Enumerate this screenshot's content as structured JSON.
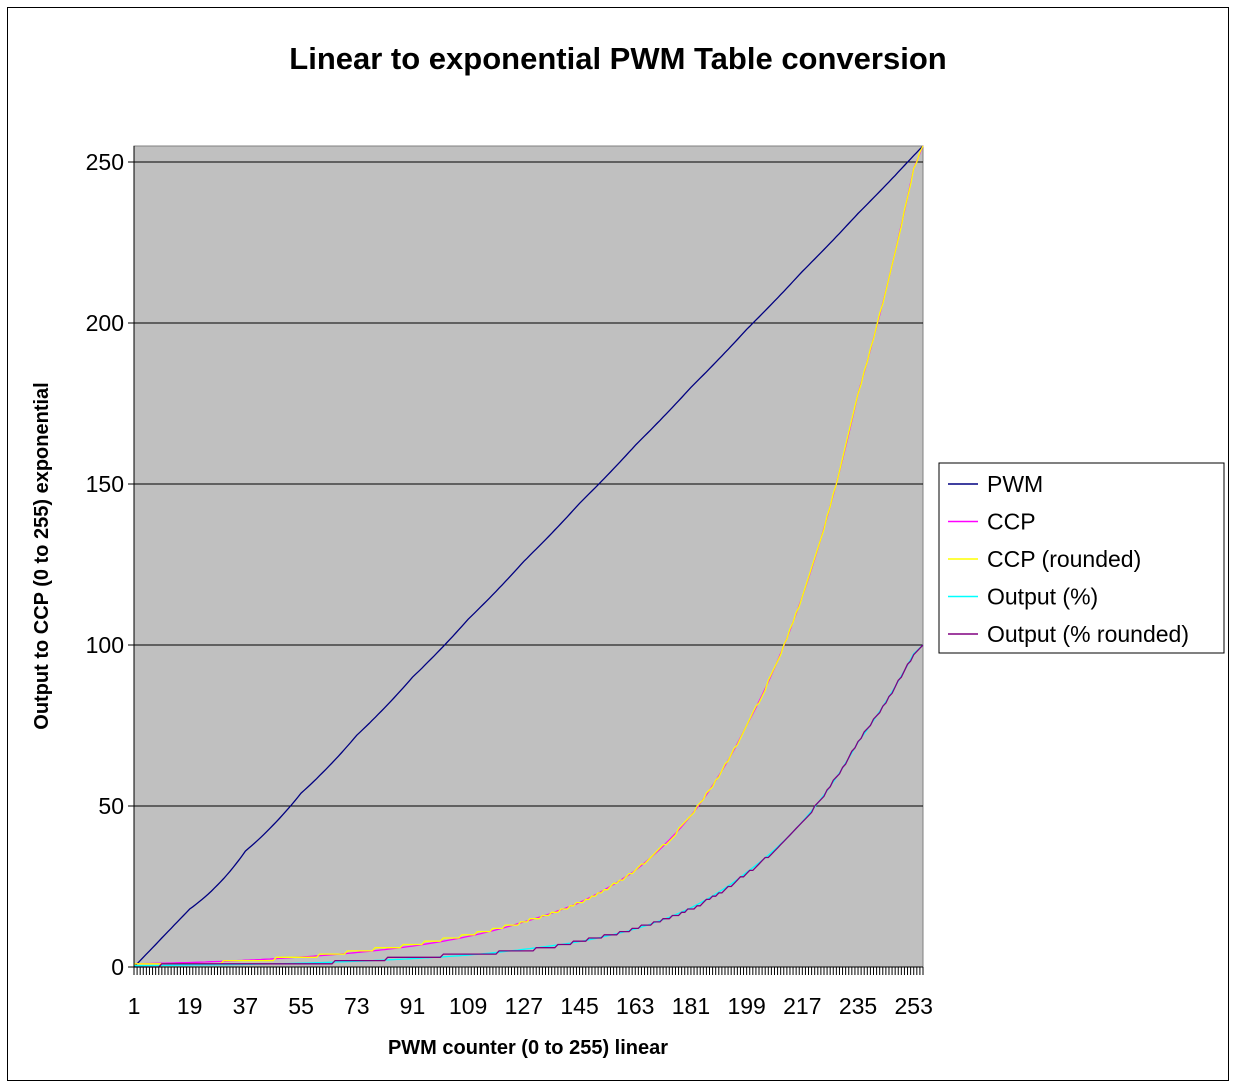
{
  "chart_data": {
    "type": "line",
    "title": "Linear to exponential PWM Table conversion",
    "xlabel": "PWM counter (0 to 255) linear",
    "ylabel": "Output to CCP (0 to 255) exponential",
    "ylim": [
      0,
      255
    ],
    "yticks": [
      0,
      50,
      100,
      150,
      200,
      250
    ],
    "x_domain": [
      1,
      256
    ],
    "xticks": [
      1,
      19,
      37,
      55,
      73,
      91,
      109,
      127,
      145,
      163,
      181,
      199,
      217,
      235,
      253
    ],
    "grid": "horizontal",
    "legend_position": "right",
    "plot_background": "#c0c0c0",
    "x": [
      1,
      19,
      37,
      55,
      73,
      91,
      109,
      127,
      145,
      163,
      181,
      199,
      217,
      235,
      253,
      256
    ],
    "series": [
      {
        "name": "PWM",
        "color": "#000080",
        "values": [
          0,
          18,
          36,
          54,
          72,
          90,
          108,
          126,
          144,
          162,
          180,
          198,
          216,
          234,
          252,
          255
        ]
      },
      {
        "name": "CCP",
        "color": "#ff00ff",
        "values": [
          1,
          1.4,
          2.1,
          3.1,
          4.5,
          6.5,
          9.5,
          14,
          20,
          30,
          47,
          75,
          115,
          178,
          248,
          255
        ]
      },
      {
        "name": "CCP (rounded)",
        "color": "#ffff00",
        "values": [
          1,
          1,
          2,
          3,
          5,
          7,
          10,
          14,
          20,
          30,
          47,
          75,
          115,
          178,
          248,
          255
        ]
      },
      {
        "name": "Output (%)",
        "color": "#00ffff",
        "values": [
          0.4,
          0.6,
          0.8,
          1.2,
          1.8,
          2.6,
          3.7,
          5.5,
          7.9,
          11.8,
          18.4,
          29.4,
          45.1,
          69.8,
          97.3,
          100
        ]
      },
      {
        "name": "Output (% rounded)",
        "color": "#800080",
        "values": [
          0,
          1,
          1,
          1,
          2,
          3,
          4,
          5,
          8,
          12,
          18,
          29,
          45,
          70,
          97,
          100
        ]
      }
    ]
  }
}
